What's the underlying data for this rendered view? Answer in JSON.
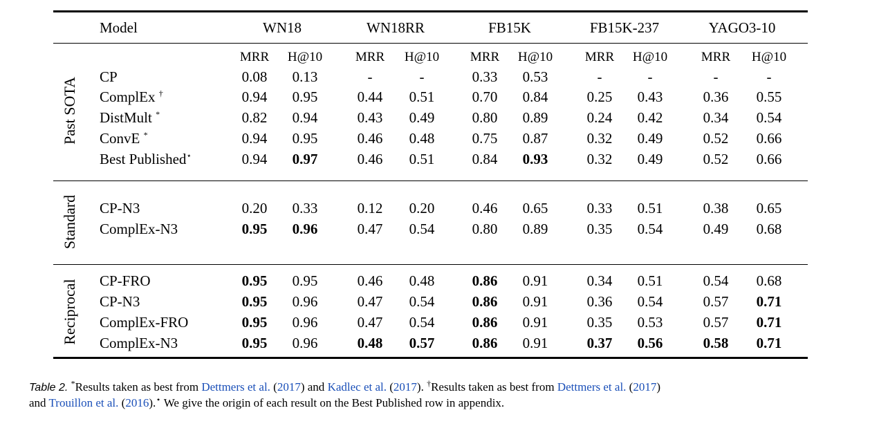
{
  "table": {
    "model_header": "Model",
    "datasets": [
      "WN18",
      "WN18RR",
      "FB15K",
      "FB15K-237",
      "YAGO3-10"
    ],
    "metrics": [
      "MRR",
      "H@10"
    ],
    "groups": [
      {
        "label": "Past SOTA",
        "rows": [
          {
            "model": "CP",
            "mark": "",
            "values": [
              "0.08",
              "0.13",
              "-",
              "-",
              "0.33",
              "0.53",
              "-",
              "-",
              "-",
              "-"
            ],
            "bold": []
          },
          {
            "model": "ComplEx",
            "mark": "†",
            "values": [
              "0.94",
              "0.95",
              "0.44",
              "0.51",
              "0.70",
              "0.84",
              "0.25",
              "0.43",
              "0.36",
              "0.55"
            ],
            "bold": []
          },
          {
            "model": "DistMult",
            "mark": "*",
            "values": [
              "0.82",
              "0.94",
              "0.43",
              "0.49",
              "0.80",
              "0.89",
              "0.24",
              "0.42",
              "0.34",
              "0.54"
            ],
            "bold": []
          },
          {
            "model": "ConvE",
            "mark": "*",
            "values": [
              "0.94",
              "0.95",
              "0.46",
              "0.48",
              "0.75",
              "0.87",
              "0.32",
              "0.49",
              "0.52",
              "0.66"
            ],
            "bold": []
          },
          {
            "model": "Best Published",
            "mark": "⋆",
            "values": [
              "0.94",
              "0.97",
              "0.46",
              "0.51",
              "0.84",
              "0.93",
              "0.32",
              "0.49",
              "0.52",
              "0.66"
            ],
            "bold": [
              1,
              5
            ]
          }
        ]
      },
      {
        "label": "Standard",
        "rows": [
          {
            "model": "CP-N3",
            "mark": "",
            "values": [
              "0.20",
              "0.33",
              "0.12",
              "0.20",
              "0.46",
              "0.65",
              "0.33",
              "0.51",
              "0.38",
              "0.65"
            ],
            "bold": []
          },
          {
            "model": "ComplEx-N3",
            "mark": "",
            "values": [
              "0.95",
              "0.96",
              "0.47",
              "0.54",
              "0.80",
              "0.89",
              "0.35",
              "0.54",
              "0.49",
              "0.68"
            ],
            "bold": [
              0,
              1
            ]
          }
        ]
      },
      {
        "label": "Reciprocal",
        "rows": [
          {
            "model": "CP-FRO",
            "mark": "",
            "values": [
              "0.95",
              "0.95",
              "0.46",
              "0.48",
              "0.86",
              "0.91",
              "0.34",
              "0.51",
              "0.54",
              "0.68"
            ],
            "bold": [
              0,
              4
            ]
          },
          {
            "model": "CP-N3",
            "mark": "",
            "values": [
              "0.95",
              "0.96",
              "0.47",
              "0.54",
              "0.86",
              "0.91",
              "0.36",
              "0.54",
              "0.57",
              "0.71"
            ],
            "bold": [
              0,
              4,
              9
            ]
          },
          {
            "model": "ComplEx-FRO",
            "mark": "",
            "values": [
              "0.95",
              "0.96",
              "0.47",
              "0.54",
              "0.86",
              "0.91",
              "0.35",
              "0.53",
              "0.57",
              "0.71"
            ],
            "bold": [
              0,
              4,
              9
            ]
          },
          {
            "model": "ComplEx-N3",
            "mark": "",
            "values": [
              "0.95",
              "0.96",
              "0.48",
              "0.57",
              "0.86",
              "0.91",
              "0.37",
              "0.56",
              "0.58",
              "0.71"
            ],
            "bold": [
              0,
              2,
              3,
              4,
              6,
              7,
              8,
              9
            ]
          }
        ]
      }
    ]
  },
  "caption": {
    "label": "Table 2.",
    "mark_star": "*",
    "part1": "Results taken as best from ",
    "ref1": "Dettmers et al.",
    "ref1_open": " (",
    "ref1_year": "2017",
    "ref1_close": ") and ",
    "ref2": "Kadlec et al.",
    "ref2_year": "2017",
    "part2": ". ",
    "mark_dagger": "†",
    "part3": "Results taken as best from ",
    "ref3": "Dettmers et al.",
    "ref3_year": "2017",
    "line2_start": "and ",
    "ref4": "Trouillon et al.",
    "ref4_year": "2016",
    "mark_smallstar": "⋆",
    "part4": " We give the origin of each result on the Best Published row in appendix."
  }
}
